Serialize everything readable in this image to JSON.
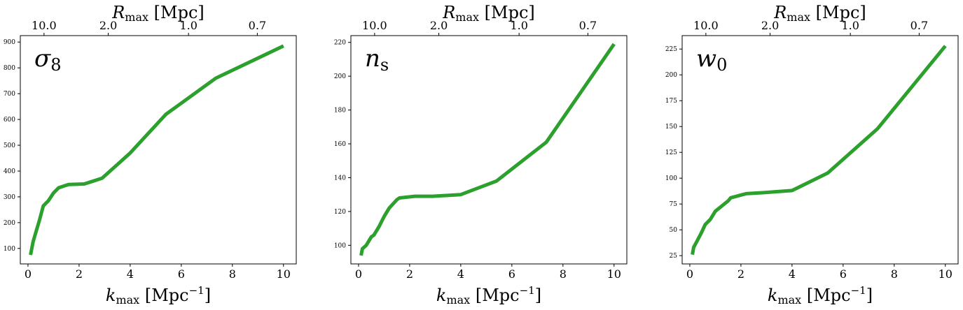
{
  "style": {
    "line_color": "#2ca02c"
  },
  "chart_data": [
    {
      "type": "line",
      "param_label": "σ",
      "param_sub": "8",
      "xlabel": {
        "main": "k",
        "sub": "max",
        "unit": " [Mpc",
        "sup": "−1",
        "close": "]"
      },
      "top_axis_label": {
        "main": "R",
        "sub": "max",
        "unit": " [Mpc]"
      },
      "top_ticks": [
        {
          "label": "10.0",
          "k": 0.6283
        },
        {
          "label": "2.0",
          "k": 3.1416
        },
        {
          "label": "1.0",
          "k": 6.2832
        },
        {
          "label": "0.7",
          "k": 8.976
        }
      ],
      "xlim": [
        -0.3,
        10.5
      ],
      "ylim": [
        40,
        925
      ],
      "xticks": [
        0,
        2,
        4,
        6,
        8,
        10
      ],
      "yticks": [
        100,
        200,
        300,
        400,
        500,
        600,
        700,
        800,
        900
      ],
      "x": [
        0.1,
        0.15,
        0.2,
        0.3,
        0.45,
        0.6,
        0.8,
        1.0,
        1.2,
        1.5,
        1.6,
        2.2,
        2.9,
        4.0,
        5.4,
        7.35,
        10.0
      ],
      "y": [
        75,
        100,
        125,
        160,
        210,
        265,
        285,
        315,
        335,
        345,
        348,
        350,
        372,
        470,
        620,
        760,
        885
      ]
    },
    {
      "type": "line",
      "param_label": "n",
      "param_sub": "s",
      "xlabel": {
        "main": "k",
        "sub": "max",
        "unit": " [Mpc",
        "sup": "−1",
        "close": "]"
      },
      "top_axis_label": {
        "main": "R",
        "sub": "max",
        "unit": " [Mpc]"
      },
      "top_ticks": [
        {
          "label": "10.0",
          "k": 0.6283
        },
        {
          "label": "2.0",
          "k": 3.1416
        },
        {
          "label": "1.0",
          "k": 6.2832
        },
        {
          "label": "0.7",
          "k": 8.976
        }
      ],
      "xlim": [
        -0.3,
        10.5
      ],
      "ylim": [
        89,
        224
      ],
      "xticks": [
        0,
        2,
        4,
        6,
        8,
        10
      ],
      "yticks": [
        100,
        120,
        140,
        160,
        180,
        200,
        220
      ],
      "x": [
        0.1,
        0.15,
        0.3,
        0.5,
        0.6,
        0.8,
        1.0,
        1.2,
        1.5,
        1.6,
        2.2,
        2.9,
        4.0,
        5.4,
        7.35,
        10.0
      ],
      "y": [
        94,
        98,
        100,
        105,
        106,
        111,
        117,
        122,
        127,
        128,
        129,
        129,
        130,
        138,
        161,
        219
      ]
    },
    {
      "type": "line",
      "param_label": "w",
      "param_sub": "0",
      "xlabel": {
        "main": "k",
        "sub": "max",
        "unit": " [Mpc",
        "sup": "−1",
        "close": "]"
      },
      "top_axis_label": {
        "main": "R",
        "sub": "max",
        "unit": " [Mpc]"
      },
      "top_ticks": [
        {
          "label": "10.0",
          "k": 0.6283
        },
        {
          "label": "2.0",
          "k": 3.1416
        },
        {
          "label": "1.0",
          "k": 6.2832
        },
        {
          "label": "0.7",
          "k": 8.976
        }
      ],
      "xlim": [
        -0.3,
        10.5
      ],
      "ylim": [
        17,
        238
      ],
      "xticks": [
        0,
        2,
        4,
        6,
        8,
        10
      ],
      "yticks": [
        25,
        50,
        75,
        100,
        125,
        150,
        175,
        200,
        225
      ],
      "x": [
        0.1,
        0.15,
        0.3,
        0.45,
        0.6,
        0.8,
        1.0,
        1.2,
        1.5,
        1.6,
        2.2,
        2.9,
        4.0,
        5.4,
        7.35,
        10.0
      ],
      "y": [
        26,
        33,
        40,
        47,
        55,
        60,
        68,
        72,
        78,
        81,
        85,
        86,
        88,
        105,
        148,
        228
      ]
    }
  ]
}
